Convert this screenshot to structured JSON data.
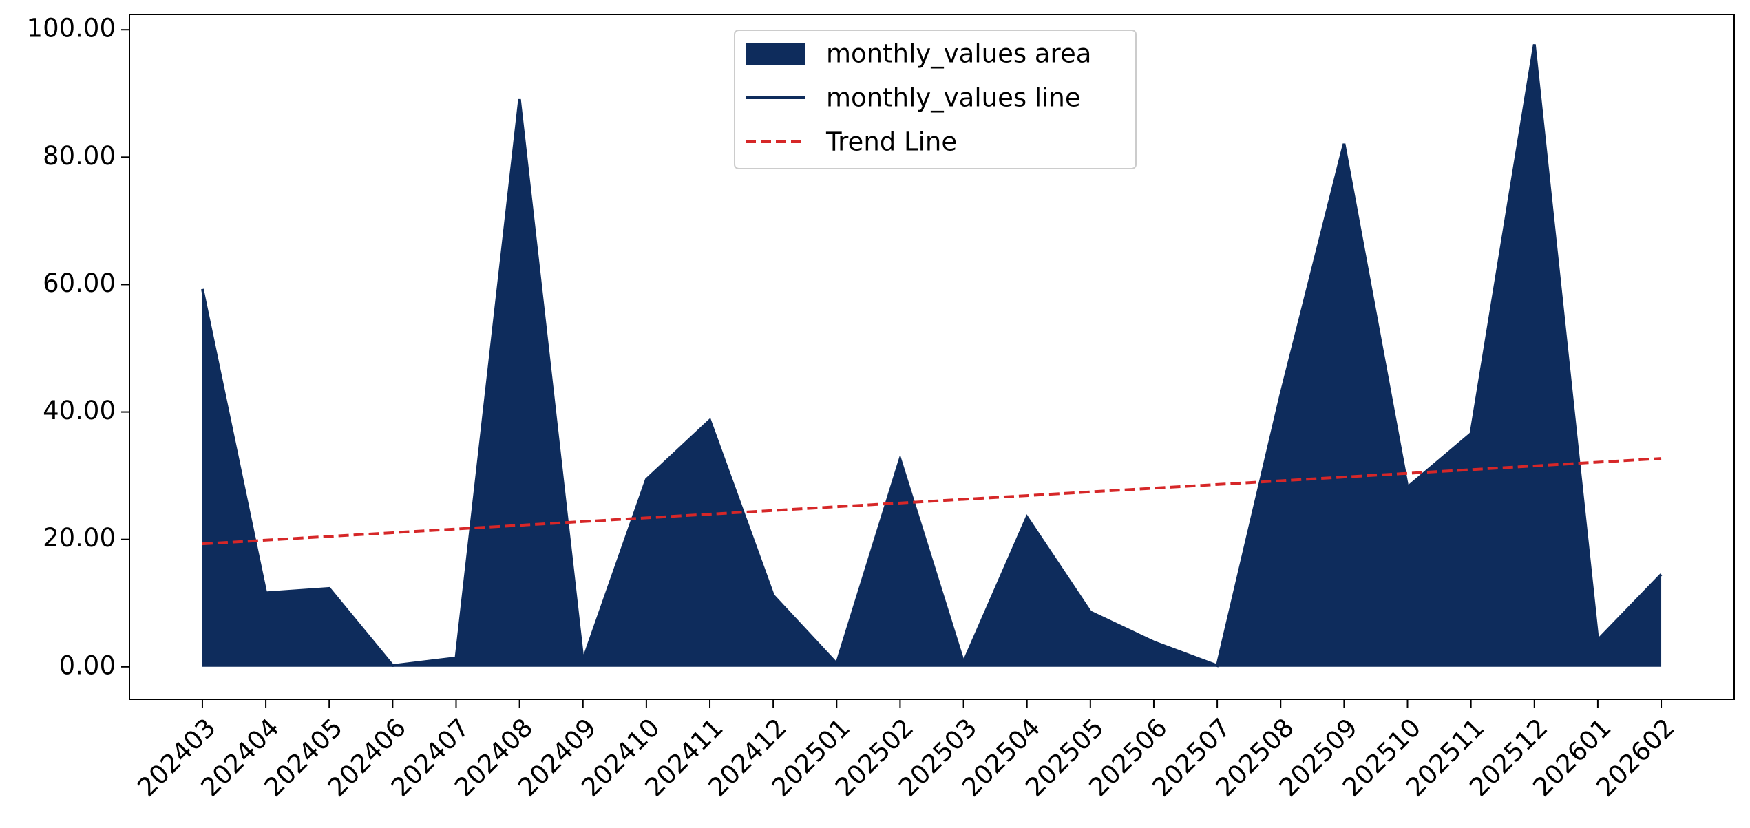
{
  "chart_data": {
    "type": "area",
    "categories": [
      "202403",
      "202404",
      "202405",
      "202406",
      "202407",
      "202408",
      "202409",
      "202410",
      "202411",
      "202412",
      "202501",
      "202502",
      "202503",
      "202504",
      "202505",
      "202506",
      "202507",
      "202508",
      "202509",
      "202510",
      "202511",
      "202512",
      "202601",
      "202602"
    ],
    "series": [
      {
        "name": "monthly_values area",
        "color": "#0e2c5c",
        "style": "area",
        "values": [
          59.3,
          11.6,
          12.3,
          0.2,
          1.4,
          89.1,
          1.0,
          29.4,
          38.7,
          11.2,
          0.5,
          32.6,
          0.7,
          23.5,
          8.6,
          3.9,
          0.2,
          42.6,
          82.1,
          28.2,
          36.6,
          97.7,
          4.2,
          14.5
        ]
      },
      {
        "name": "monthly_values line",
        "color": "#0e2c5c",
        "style": "solid",
        "values": [
          59.3,
          11.6,
          12.3,
          0.2,
          1.4,
          89.1,
          1.0,
          29.4,
          38.7,
          11.2,
          0.5,
          32.6,
          0.7,
          23.5,
          8.6,
          3.9,
          0.2,
          42.6,
          82.1,
          28.2,
          36.6,
          97.7,
          4.2,
          14.5
        ]
      },
      {
        "name": "Trend Line",
        "color": "#d62728",
        "style": "dashed",
        "values": [
          19.3,
          19.88,
          20.47,
          21.05,
          21.63,
          22.21,
          22.8,
          23.38,
          23.96,
          24.54,
          25.13,
          25.71,
          26.29,
          26.87,
          27.46,
          28.04,
          28.62,
          29.2,
          29.79,
          30.37,
          30.95,
          31.53,
          32.12,
          32.7
        ]
      }
    ],
    "ylim": [
      -5.1,
      102.4
    ],
    "yticks": [
      {
        "value": 0,
        "label": "0.00"
      },
      {
        "value": 20,
        "label": "20.00"
      },
      {
        "value": 40,
        "label": "40.00"
      },
      {
        "value": 60,
        "label": "60.00"
      },
      {
        "value": 80,
        "label": "80.00"
      },
      {
        "value": 100,
        "label": "100.00"
      }
    ],
    "grid": false,
    "legend": "upper center"
  }
}
